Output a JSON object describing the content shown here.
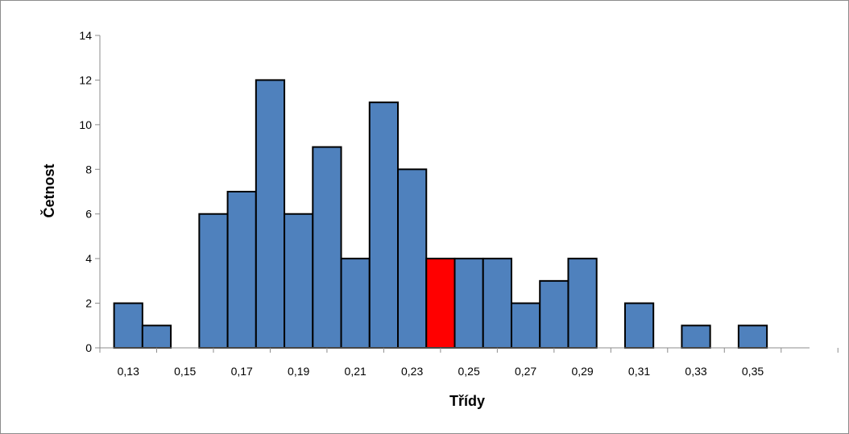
{
  "chart_data": {
    "type": "bar",
    "title": "",
    "xlabel": "Třídy",
    "ylabel": "Četnost",
    "ylim": [
      0,
      14
    ],
    "y_ticks": [
      "0",
      "2",
      "4",
      "6",
      "8",
      "10",
      "12",
      "14"
    ],
    "x_tick_labels": [
      "0,13",
      "0,15",
      "0,17",
      "0,19",
      "0,21",
      "0,23",
      "0,25",
      "0,27",
      "0,29",
      "0,31",
      "0,33",
      "0,35"
    ],
    "x_min": 0.12,
    "x_max": 0.37,
    "bin_width": 0.01,
    "bins": [
      {
        "x": 0.13,
        "value": 2
      },
      {
        "x": 0.14,
        "value": 1
      },
      {
        "x": 0.16,
        "value": 6
      },
      {
        "x": 0.17,
        "value": 7
      },
      {
        "x": 0.18,
        "value": 12
      },
      {
        "x": 0.19,
        "value": 6
      },
      {
        "x": 0.2,
        "value": 9
      },
      {
        "x": 0.21,
        "value": 4
      },
      {
        "x": 0.22,
        "value": 11
      },
      {
        "x": 0.23,
        "value": 8
      },
      {
        "x": 0.24,
        "value": 4,
        "highlight": true
      },
      {
        "x": 0.25,
        "value": 4
      },
      {
        "x": 0.26,
        "value": 4
      },
      {
        "x": 0.27,
        "value": 2
      },
      {
        "x": 0.28,
        "value": 3
      },
      {
        "x": 0.29,
        "value": 4
      },
      {
        "x": 0.31,
        "value": 2
      },
      {
        "x": 0.33,
        "value": 1
      },
      {
        "x": 0.35,
        "value": 1
      }
    ],
    "bar_color": "#4f81bd",
    "highlight_color": "#ff0000",
    "bar_edge_color": "#000000",
    "grid": false,
    "legend": "none"
  }
}
